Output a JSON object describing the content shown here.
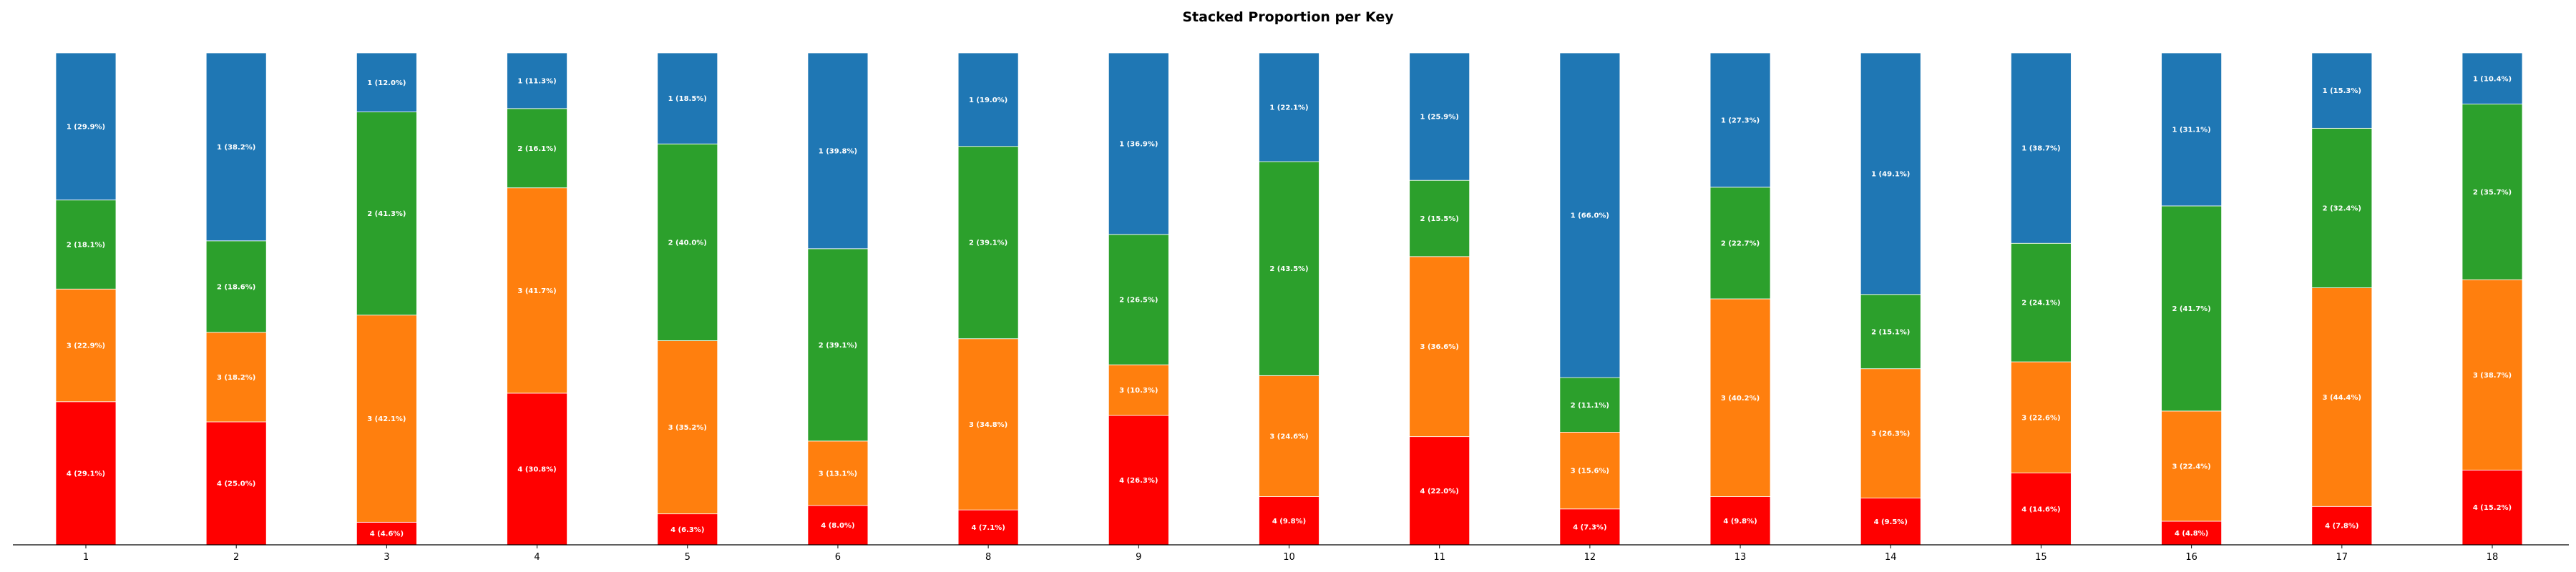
{
  "chart_data": {
    "type": "bar",
    "stacked": true,
    "title": "Stacked Proportion per Key",
    "xlabel": "",
    "ylabel": "",
    "ylim": [
      0,
      100
    ],
    "grid": false,
    "categories": [
      "1",
      "2",
      "3",
      "4",
      "5",
      "6",
      "8",
      "9",
      "10",
      "11",
      "12",
      "13",
      "14",
      "15",
      "16",
      "17",
      "18"
    ],
    "series": [
      {
        "name": "4",
        "color": "#ff0000",
        "values": [
          29.1,
          25.0,
          4.6,
          30.8,
          6.3,
          8.0,
          7.1,
          26.3,
          9.8,
          22.0,
          7.3,
          9.8,
          9.5,
          14.6,
          4.8,
          7.8,
          15.2
        ],
        "labels": [
          "4 (29.1%)",
          "4 (25.0%)",
          "4 (4.6%)",
          "4 (30.8%)",
          "4 (6.3%)",
          "4 (8.0%)",
          "4 (7.1%)",
          "4 (26.3%)",
          "4 (9.8%)",
          "4 (22.0%)",
          "4 (7.3%)",
          "4 (9.8%)",
          "4 (9.5%)",
          "4 (14.6%)",
          "4 (4.8%)",
          "4 (7.8%)",
          "4 (15.2%)"
        ]
      },
      {
        "name": "3",
        "color": "#ff7f0e",
        "values": [
          22.9,
          18.2,
          42.1,
          41.7,
          35.2,
          13.1,
          34.8,
          10.3,
          24.6,
          36.6,
          15.6,
          40.2,
          26.3,
          22.6,
          22.4,
          44.4,
          38.7
        ],
        "labels": [
          "3 (22.9%)",
          "3 (18.2%)",
          "3 (42.1%)",
          "3 (41.7%)",
          "3 (35.2%)",
          "3 (13.1%)",
          "3 (34.8%)",
          "3 (10.3%)",
          "3 (24.6%)",
          "3 (36.6%)",
          "3 (15.6%)",
          "3 (40.2%)",
          "3 (26.3%)",
          "3 (22.6%)",
          "3 (22.4%)",
          "3 (44.4%)",
          "3 (38.7%)"
        ]
      },
      {
        "name": "2",
        "color": "#2ca02c",
        "values": [
          18.1,
          18.6,
          41.3,
          16.1,
          40.0,
          39.1,
          39.1,
          26.5,
          43.5,
          15.5,
          11.1,
          22.7,
          15.1,
          24.1,
          41.7,
          32.4,
          35.7
        ],
        "labels": [
          "2 (18.1%)",
          "2 (18.6%)",
          "2 (41.3%)",
          "2 (16.1%)",
          "2 (40.0%)",
          "2 (39.1%)",
          "2 (39.1%)",
          "2 (26.5%)",
          "2 (43.5%)",
          "2 (15.5%)",
          "2 (11.1%)",
          "2 (22.7%)",
          "2 (15.1%)",
          "2 (24.1%)",
          "2 (41.7%)",
          "2 (32.4%)",
          "2 (35.7%)"
        ]
      },
      {
        "name": "1",
        "color": "#1f77b4",
        "values": [
          29.9,
          38.2,
          12.0,
          11.3,
          18.5,
          39.8,
          19.0,
          36.9,
          22.1,
          25.9,
          66.0,
          27.3,
          49.1,
          38.7,
          31.1,
          15.3,
          10.4
        ],
        "labels": [
          "1 (29.9%)",
          "1 (38.2%)",
          "1 (12.0%)",
          "1 (11.3%)",
          "1 (18.5%)",
          "1 (39.8%)",
          "1 (19.0%)",
          "1 (36.9%)",
          "1 (22.1%)",
          "1 (25.9%)",
          "1 (66.0%)",
          "1 (27.3%)",
          "1 (49.1%)",
          "1 (38.7%)",
          "1 (31.1%)",
          "1 (15.3%)",
          "1 (10.4%)"
        ]
      }
    ]
  }
}
